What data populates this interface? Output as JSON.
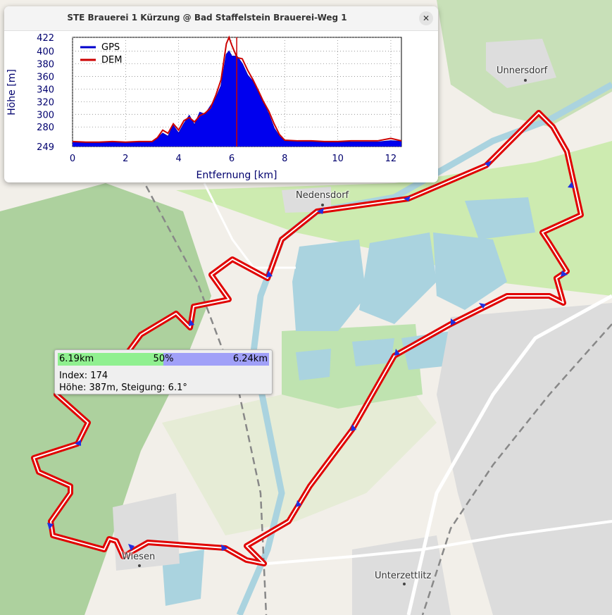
{
  "window": {
    "title": "STE Brauerei 1 Kürzung @ Bad Staffelstein Brauerei-Weg 1",
    "close_icon": "close-icon"
  },
  "map": {
    "places": [
      "Unnersdorf",
      "Nedensdorf",
      "Wiesen",
      "Unterzettlitz"
    ],
    "colors": {
      "track": "#e00000",
      "track_inner": "#ffffff",
      "arrow": "#2030e0",
      "forest": "#add19e",
      "water": "#aad3df"
    }
  },
  "tooltip": {
    "left_distance": "6.19km",
    "center_percent": "50%",
    "right_distance": "6.24km",
    "progress": 0.5,
    "index_line": "Index: 174",
    "height_line": "Höhe: 387m, Steigung: 6.1°"
  },
  "chart_data": {
    "type": "area",
    "xlabel": "Entfernung [km]",
    "ylabel": "Höhe [m]",
    "xlim": [
      0,
      12.4
    ],
    "ylim": [
      249,
      422
    ],
    "x_ticks": [
      "0",
      "2",
      "4",
      "6",
      "8",
      "10",
      "12"
    ],
    "x_tick_values": [
      0,
      2,
      4,
      6,
      8,
      10,
      12
    ],
    "y_ticks": [
      "249",
      "280",
      "300",
      "320",
      "340",
      "360",
      "380",
      "400",
      "422"
    ],
    "y_tick_values": [
      249,
      280,
      300,
      320,
      340,
      360,
      380,
      400,
      422
    ],
    "legend": [
      "GPS",
      "DEM"
    ],
    "cursor_x": 6.19,
    "grid": true,
    "series": [
      {
        "name": "GPS",
        "color": "#0000cc",
        "x": [
          0,
          0.5,
          1,
          1.5,
          2,
          2.5,
          3,
          3.2,
          3.4,
          3.6,
          3.8,
          4.0,
          4.2,
          4.4,
          4.6,
          4.8,
          5.0,
          5.2,
          5.4,
          5.6,
          5.8,
          5.9,
          6.0,
          6.2,
          6.4,
          6.6,
          6.8,
          7.0,
          7.2,
          7.4,
          7.6,
          7.8,
          8.0,
          8.5,
          9,
          9.5,
          10,
          10.5,
          11,
          11.5,
          12,
          12.4
        ],
        "y": [
          256,
          255,
          255,
          256,
          255,
          256,
          256,
          262,
          270,
          265,
          282,
          270,
          285,
          298,
          283,
          303,
          300,
          313,
          325,
          345,
          395,
          400,
          392,
          392,
          380,
          362,
          352,
          335,
          318,
          300,
          278,
          265,
          258,
          257,
          257,
          256,
          256,
          256,
          256,
          256,
          258,
          257
        ]
      },
      {
        "name": "DEM",
        "color": "#cc0000",
        "x": [
          0,
          0.5,
          1,
          1.5,
          2,
          2.5,
          3,
          3.2,
          3.4,
          3.6,
          3.8,
          4.0,
          4.2,
          4.4,
          4.6,
          4.8,
          5.0,
          5.2,
          5.4,
          5.6,
          5.8,
          5.9,
          6.0,
          6.2,
          6.4,
          6.6,
          6.8,
          7.0,
          7.2,
          7.4,
          7.6,
          7.8,
          8.0,
          8.5,
          9,
          9.5,
          10,
          10.5,
          11,
          11.5,
          12,
          12.4
        ],
        "y": [
          257,
          256,
          256,
          257,
          256,
          257,
          257,
          263,
          275,
          270,
          285,
          275,
          290,
          295,
          288,
          298,
          302,
          310,
          330,
          355,
          412,
          422,
          410,
          390,
          388,
          370,
          355,
          338,
          320,
          305,
          285,
          268,
          259,
          258,
          258,
          257,
          257,
          258,
          258,
          258,
          262,
          258
        ]
      }
    ]
  }
}
